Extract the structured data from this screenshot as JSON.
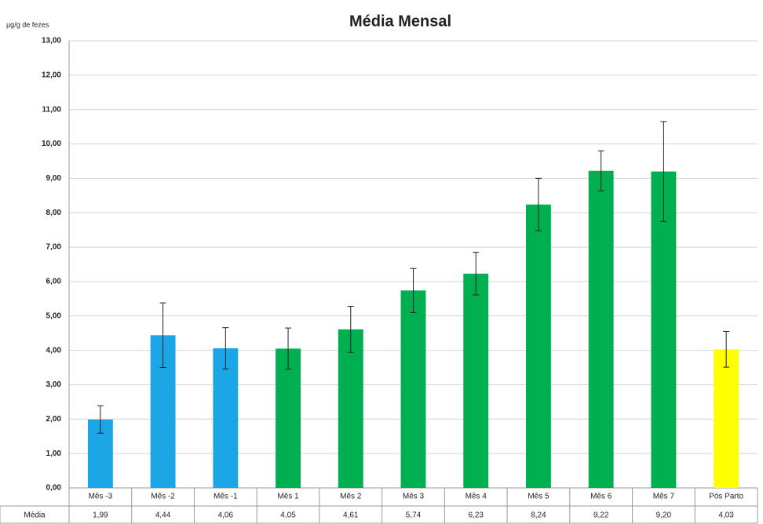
{
  "chart_data": {
    "type": "bar",
    "title": "Média Mensal",
    "y_label": "µg/g de fezes",
    "categories": [
      "Mês -3",
      "Mês -2",
      "Mês -1",
      "Mês 1",
      "Mês 2",
      "Mês 3",
      "Mês 4",
      "Mês 5",
      "Mês 6",
      "Mês 7",
      "Pós Parto"
    ],
    "series": [
      {
        "name": "Média",
        "values": [
          1.99,
          4.44,
          4.06,
          4.05,
          4.61,
          5.74,
          6.23,
          8.24,
          9.22,
          9.2,
          4.03
        ],
        "value_labels": [
          "1,99",
          "4,44",
          "4,06",
          "4,05",
          "4,61",
          "5,74",
          "6,23",
          "8,24",
          "9,22",
          "9,20",
          "4,03"
        ],
        "errors": [
          0.4,
          0.94,
          0.6,
          0.6,
          0.67,
          0.64,
          0.62,
          0.76,
          0.58,
          1.45,
          0.52
        ],
        "colors": [
          "#1ca6e6",
          "#1ca6e6",
          "#1ca6e6",
          "#00b050",
          "#00b050",
          "#00b050",
          "#00b050",
          "#00b050",
          "#00b050",
          "#00b050",
          "#ffff00"
        ]
      }
    ],
    "ylim": [
      0,
      13
    ],
    "yticks": [
      {
        "value": 0,
        "label": "0,00"
      },
      {
        "value": 1,
        "label": "1,00"
      },
      {
        "value": 2,
        "label": "2,00"
      },
      {
        "value": 3,
        "label": "3,00"
      },
      {
        "value": 4,
        "label": "4,00"
      },
      {
        "value": 5,
        "label": "5,00"
      },
      {
        "value": 6,
        "label": "6,00"
      },
      {
        "value": 7,
        "label": "7,00"
      },
      {
        "value": 8,
        "label": "8,00"
      },
      {
        "value": 9,
        "label": "9,00"
      },
      {
        "value": 10,
        "label": "10,00"
      },
      {
        "value": 11,
        "label": "11,00"
      },
      {
        "value": 12,
        "label": "12,00"
      },
      {
        "value": 13,
        "label": "13,00"
      }
    ],
    "grid": true
  }
}
